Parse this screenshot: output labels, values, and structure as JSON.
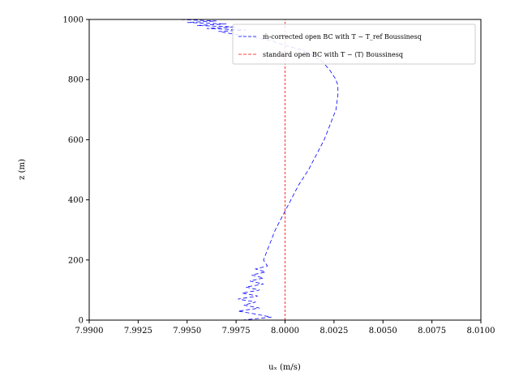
{
  "chart_data": {
    "type": "line",
    "xlabel": "uₓ (m/s)",
    "ylabel": "z (m)",
    "xlim": [
      7.99,
      8.01
    ],
    "ylim": [
      0,
      1000
    ],
    "grid": false,
    "legend_position": "top-right",
    "x_ticks": [
      7.99,
      7.9925,
      7.995,
      7.9975,
      8.0,
      8.0025,
      8.005,
      8.0075,
      8.01
    ],
    "x_tick_labels": [
      "7.9900",
      "7.9925",
      "7.9950",
      "7.9975",
      "8.0000",
      "8.0025",
      "8.0050",
      "8.0075",
      "8.0100"
    ],
    "y_ticks": [
      0,
      200,
      400,
      600,
      800,
      1000
    ],
    "y_tick_labels": [
      "0",
      "200",
      "400",
      "600",
      "800",
      "1000"
    ],
    "series": [
      {
        "name": "ṁ-corrected open BC with T − T_ref Boussinesq",
        "color": "#0000ff",
        "dash": "dashed",
        "x": [
          7.9978,
          7.9993,
          7.9985,
          7.9976,
          7.9987,
          7.9979,
          7.9985,
          7.9976,
          7.9986,
          7.9978,
          7.9987,
          7.998,
          7.9989,
          7.9982,
          7.9989,
          7.9983,
          7.999,
          7.9985,
          7.9991,
          7.9989,
          7.9992,
          7.9995,
          7.9999,
          8.0003,
          8.0007,
          8.0012,
          8.0016,
          8.002,
          8.0023,
          8.0026,
          8.0027,
          8.0027,
          8.0026,
          8.0023,
          8.0019,
          8.0014,
          8.0008,
          8.0002,
          7.9997,
          7.9993,
          7.9984,
          7.9975,
          7.9966,
          7.998,
          7.996,
          7.9975,
          7.9955,
          7.997,
          7.995,
          7.9965,
          7.9945
        ],
        "y": [
          0,
          10,
          20,
          30,
          40,
          50,
          60,
          70,
          80,
          90,
          100,
          110,
          120,
          130,
          140,
          150,
          160,
          170,
          180,
          200,
          250,
          300,
          350,
          400,
          450,
          500,
          550,
          600,
          650,
          700,
          750,
          780,
          800,
          830,
          860,
          880,
          900,
          910,
          920,
          930,
          940,
          950,
          960,
          965,
          970,
          975,
          980,
          985,
          990,
          995,
          1000
        ]
      },
      {
        "name": "standard open BC with T − ⟨T⟩ Boussinesq",
        "color": "#ff0000",
        "dash": "dashed",
        "x": [
          8.0,
          8.0
        ],
        "y": [
          0,
          1000
        ]
      }
    ]
  }
}
